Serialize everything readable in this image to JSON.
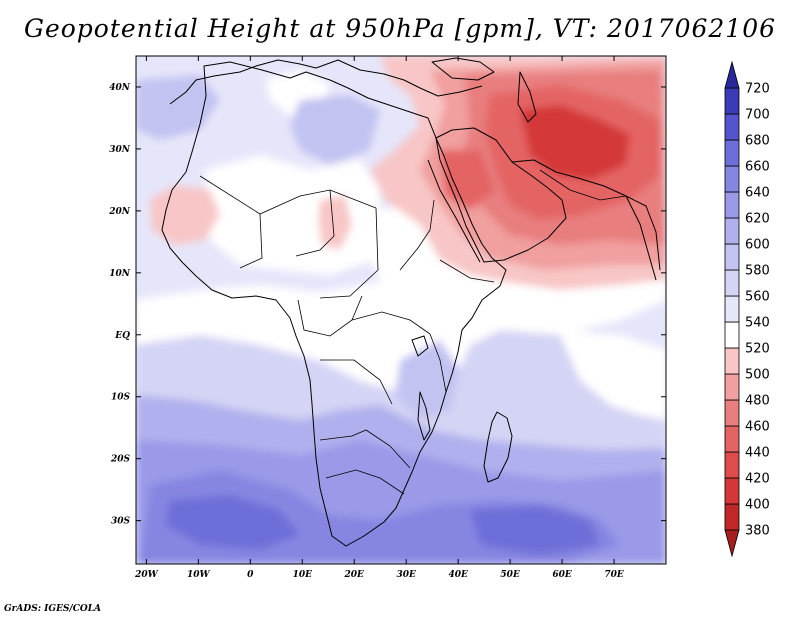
{
  "title": "Geopotential Height at 950hPa [gpm], VT: 2017062106",
  "credit": "GrADS: IGES/COLA",
  "map": {
    "lon_range": [
      -22,
      80
    ],
    "lat_range": [
      -37,
      45
    ],
    "lon_ticks": [
      {
        "value": -20,
        "label": "20W"
      },
      {
        "value": -10,
        "label": "10W"
      },
      {
        "value": 0,
        "label": "0"
      },
      {
        "value": 10,
        "label": "10E"
      },
      {
        "value": 20,
        "label": "20E"
      },
      {
        "value": 30,
        "label": "30E"
      },
      {
        "value": 40,
        "label": "40E"
      },
      {
        "value": 50,
        "label": "50E"
      },
      {
        "value": 60,
        "label": "60E"
      },
      {
        "value": 70,
        "label": "70E"
      }
    ],
    "lat_ticks": [
      {
        "value": 40,
        "label": "40N"
      },
      {
        "value": 30,
        "label": "30N"
      },
      {
        "value": 20,
        "label": "20N"
      },
      {
        "value": 10,
        "label": "10N"
      },
      {
        "value": 0,
        "label": "EQ"
      },
      {
        "value": -10,
        "label": "10S"
      },
      {
        "value": -20,
        "label": "20S"
      },
      {
        "value": -30,
        "label": "30S"
      }
    ]
  },
  "colorbar": {
    "levels": [
      "380",
      "400",
      "420",
      "440",
      "460",
      "480",
      "500",
      "520",
      "540",
      "560",
      "580",
      "600",
      "620",
      "640",
      "660",
      "680",
      "700",
      "720"
    ],
    "colors": [
      "#a81e1e",
      "#c02828",
      "#d43737",
      "#e04b4b",
      "#e46464",
      "#e87e7e",
      "#f19f9f",
      "#f8c6c6",
      "#ffffff",
      "#e6e6fa",
      "#d4d4f5",
      "#c3c3f2",
      "#b0b0ee",
      "#9a9ae8",
      "#8686e2",
      "#6e6ed8",
      "#5454cc",
      "#3b3bb8",
      "#28289a"
    ]
  }
}
